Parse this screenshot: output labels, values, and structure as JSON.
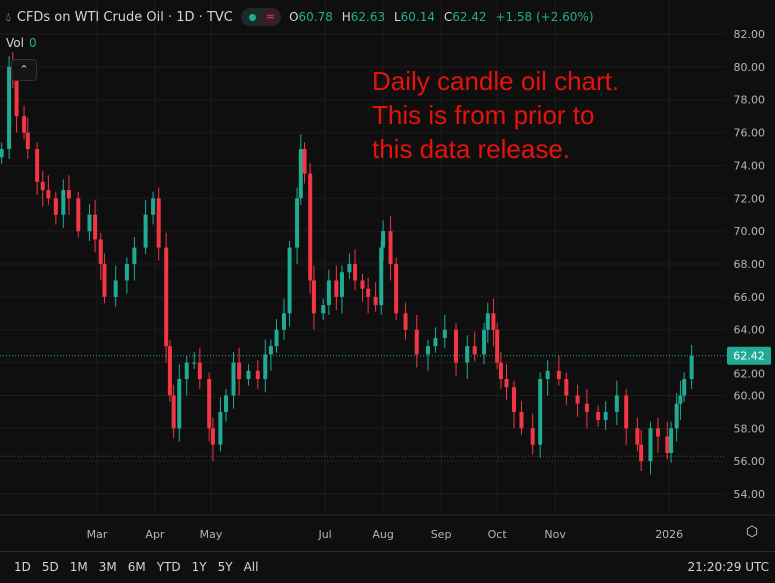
{
  "header": {
    "icon": "oil-drop-icon",
    "title": "CFDs on WTI Crude Oil · 1D · TVC",
    "status_icons": [
      "market-open-dot-icon",
      "wave-icon"
    ],
    "ohlc": {
      "o_label": "O",
      "o": "60.78",
      "h_label": "H",
      "h": "62.63",
      "l_label": "L",
      "l": "60.14",
      "c_label": "C",
      "c": "62.42",
      "change": "+1.58 (+2.60%)"
    },
    "vol_label": "Vol",
    "vol_value": "0",
    "collapse_icon": "chevron-up-icon"
  },
  "annotation": [
    "Daily candle oil chart.",
    "This is from prior to",
    "this data release."
  ],
  "colors": {
    "up": "#22ab94",
    "down": "#f23645",
    "background": "#0f0f0f",
    "annotation": "#e8120c",
    "price_label": "#22ab94"
  },
  "chart_data": {
    "type": "candlestick",
    "title": "CFDs on WTI Crude Oil · 1D · TVC",
    "ylim": [
      53,
      83
    ],
    "y_ticks": [
      "54.00",
      "56.00",
      "58.00",
      "60.00",
      "62.00",
      "64.00",
      "66.00",
      "68.00",
      "70.00",
      "72.00",
      "74.00",
      "76.00",
      "78.00",
      "80.00",
      "82.00"
    ],
    "x_ticks": [
      {
        "label": "Mar",
        "date": "2025-03-01"
      },
      {
        "label": "Apr",
        "date": "2025-04-01"
      },
      {
        "label": "May",
        "date": "2025-05-01"
      },
      {
        "label": "Jul",
        "date": "2025-07-01"
      },
      {
        "label": "Aug",
        "date": "2025-08-01"
      },
      {
        "label": "Sep",
        "date": "2025-09-01"
      },
      {
        "label": "Oct",
        "date": "2025-10-01"
      },
      {
        "label": "Nov",
        "date": "2025-11-01"
      },
      {
        "label": "2026",
        "date": "2026-01-01"
      }
    ],
    "last_price": "62.42",
    "last_price_value": 62.42,
    "low_marker": 56.3,
    "grid": true,
    "dates": [
      "2025-01-09",
      "2025-01-13",
      "2025-01-15",
      "2025-01-17",
      "2025-01-21",
      "2025-01-23",
      "2025-01-28",
      "2025-01-31",
      "2025-02-03",
      "2025-02-07",
      "2025-02-11",
      "2025-02-14",
      "2025-02-19",
      "2025-02-25",
      "2025-02-28",
      "2025-03-03",
      "2025-03-05",
      "2025-03-11",
      "2025-03-17",
      "2025-03-21",
      "2025-03-27",
      "2025-03-31",
      "2025-04-03",
      "2025-04-07",
      "2025-04-09",
      "2025-04-11",
      "2025-04-14",
      "2025-04-18",
      "2025-04-22",
      "2025-04-25",
      "2025-04-30",
      "2025-05-02",
      "2025-05-06",
      "2025-05-09",
      "2025-05-13",
      "2025-05-16",
      "2025-05-21",
      "2025-05-26",
      "2025-05-30",
      "2025-06-02",
      "2025-06-05",
      "2025-06-09",
      "2025-06-12",
      "2025-06-16",
      "2025-06-18",
      "2025-06-20",
      "2025-06-23",
      "2025-06-25",
      "2025-06-30",
      "2025-07-03",
      "2025-07-07",
      "2025-07-10",
      "2025-07-14",
      "2025-07-17",
      "2025-07-21",
      "2025-07-24",
      "2025-07-28",
      "2025-07-31",
      "2025-08-01",
      "2025-08-05",
      "2025-08-08",
      "2025-08-13",
      "2025-08-19",
      "2025-08-25",
      "2025-08-29",
      "2025-09-03",
      "2025-09-09",
      "2025-09-15",
      "2025-09-19",
      "2025-09-24",
      "2025-09-26",
      "2025-09-29",
      "2025-10-01",
      "2025-10-03",
      "2025-10-06",
      "2025-10-10",
      "2025-10-14",
      "2025-10-20",
      "2025-10-24",
      "2025-10-28",
      "2025-11-03",
      "2025-11-07",
      "2025-11-13",
      "2025-11-18",
      "2025-11-24",
      "2025-11-28",
      "2025-12-04",
      "2025-12-09",
      "2025-12-15",
      "2025-12-17",
      "2025-12-22",
      "2025-12-26",
      "2025-12-31",
      "2026-01-02",
      "2026-01-05",
      "2026-01-07",
      "2026-01-09",
      "2026-01-13"
    ],
    "close": [
      75,
      80,
      79.5,
      77,
      76,
      75,
      73,
      72.5,
      72,
      71,
      72.5,
      72,
      70,
      71,
      69.5,
      68,
      66,
      67,
      68,
      69,
      71,
      72,
      69,
      63,
      60,
      58,
      61,
      62,
      62,
      61,
      58,
      57,
      59,
      60,
      62,
      61,
      61.5,
      61,
      62.5,
      63,
      64,
      65,
      69,
      72,
      75,
      73.5,
      67,
      65,
      65.5,
      67,
      66,
      67.5,
      68,
      67,
      66.5,
      66,
      65.5,
      69,
      70,
      68,
      65,
      64,
      62.5,
      63,
      63.5,
      64,
      62,
      63,
      62.5,
      64,
      65,
      64,
      62,
      61,
      60.5,
      59,
      58,
      57,
      61,
      61.5,
      61,
      60,
      59.5,
      59,
      58.5,
      59,
      60,
      58,
      57,
      56,
      58,
      57.5,
      56.5,
      58,
      59.5,
      60,
      61,
      62.42
    ]
  },
  "time_axis": {
    "settings_icon": "gear-icon"
  },
  "range_buttons": [
    "1D",
    "5D",
    "1M",
    "3M",
    "6M",
    "YTD",
    "1Y",
    "5Y",
    "All"
  ],
  "clock": "21:20:29 UTC"
}
